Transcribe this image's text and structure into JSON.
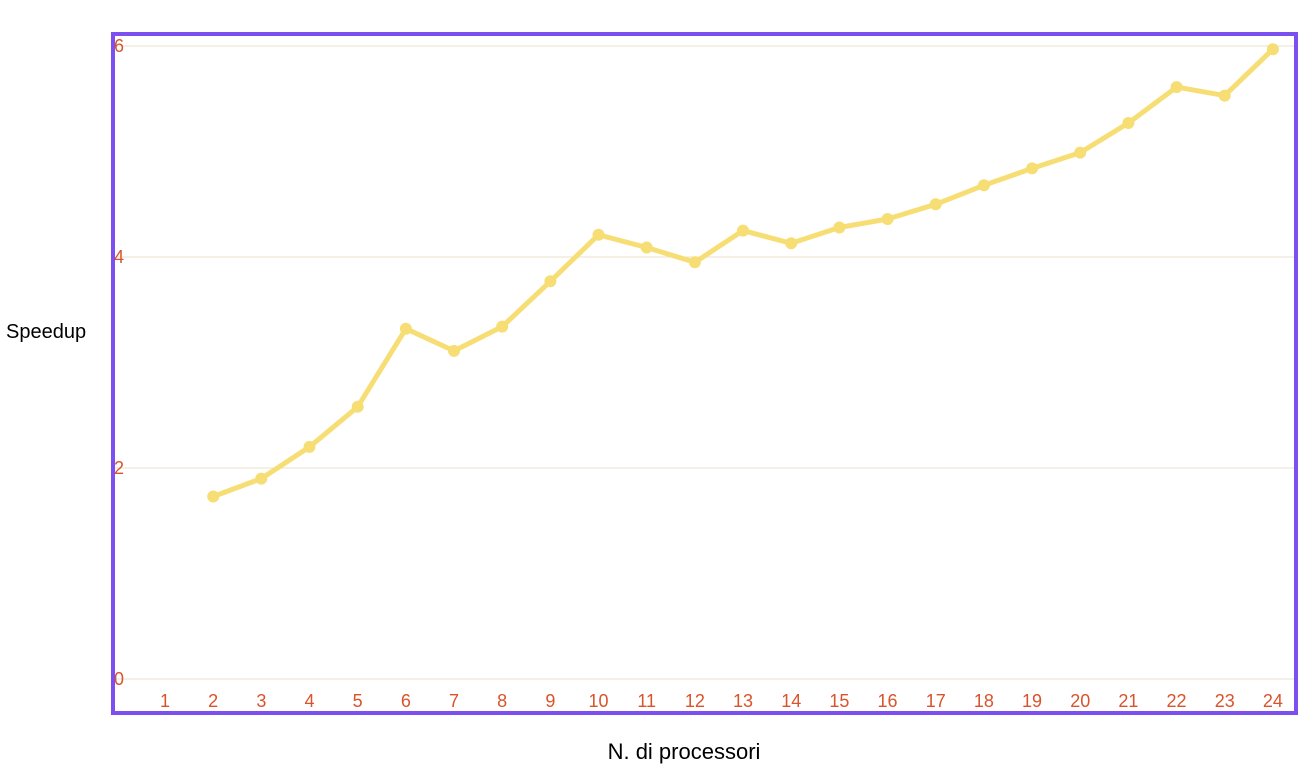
{
  "chart_data": {
    "type": "line",
    "title": "",
    "xlabel": "N. di processori",
    "ylabel": "Speedup",
    "categories": [
      "1",
      "2",
      "3",
      "4",
      "5",
      "6",
      "7",
      "8",
      "9",
      "10",
      "11",
      "12",
      "13",
      "14",
      "15",
      "16",
      "17",
      "18",
      "19",
      "20",
      "21",
      "22",
      "23",
      "24"
    ],
    "series": [
      {
        "values": [
          null,
          1.73,
          1.9,
          2.2,
          2.58,
          3.32,
          3.11,
          3.34,
          3.77,
          4.21,
          4.09,
          3.95,
          4.25,
          4.13,
          4.28,
          4.36,
          4.5,
          4.68,
          4.84,
          4.99,
          5.27,
          5.61,
          5.53,
          5.97
        ]
      }
    ],
    "ylim": [
      0,
      6
    ],
    "yticks": [
      0,
      2,
      4,
      6
    ],
    "grid": true,
    "legend": "none",
    "colors": {
      "line": "#f7de74",
      "frame": "#7c4ff0",
      "tick_text": "#d9532b",
      "grid": "#e9e1cd",
      "axis_title": "#000000"
    }
  }
}
